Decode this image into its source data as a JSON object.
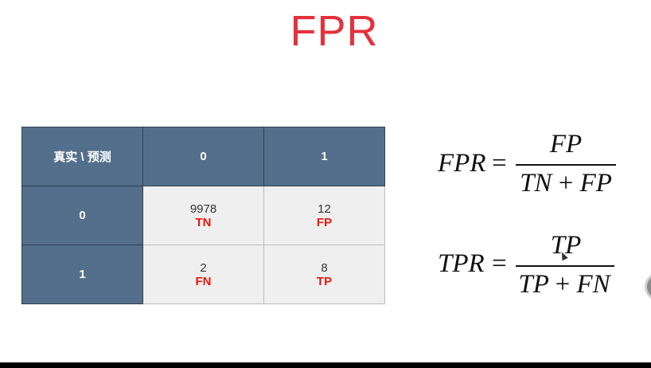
{
  "slide": {
    "title": "FPR"
  },
  "matrix": {
    "corner_label": "真实 \\ 预测",
    "col_headers": [
      "0",
      "1"
    ],
    "rows": [
      {
        "header": "0",
        "cells": [
          {
            "value": "9978",
            "label": "TN"
          },
          {
            "value": "12",
            "label": "FP"
          }
        ]
      },
      {
        "header": "1",
        "cells": [
          {
            "value": "2",
            "label": "FN"
          },
          {
            "value": "8",
            "label": "TP"
          }
        ]
      }
    ]
  },
  "formulas": {
    "fpr": {
      "lhs": "FPR",
      "eq": "=",
      "numerator": "FP",
      "denom_a": "TN",
      "denom_op": "+",
      "denom_b": "FP"
    },
    "tpr": {
      "lhs": "TPR",
      "eq": "=",
      "numerator": "TP",
      "denom_a": "TP",
      "denom_op": "+",
      "denom_b": "FN"
    }
  },
  "colors": {
    "title": "#e3313d",
    "header_bg": "#546f8b",
    "cell_bg": "#efefef",
    "label_red": "#e8160c"
  }
}
